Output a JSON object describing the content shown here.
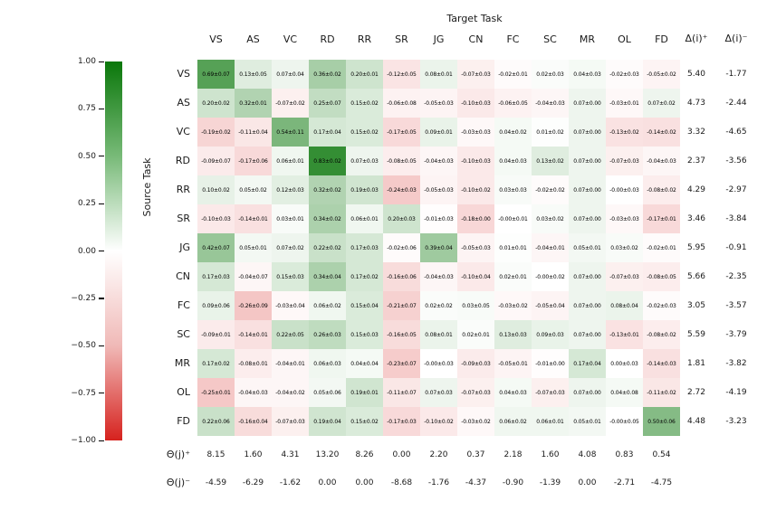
{
  "chart_data": {
    "type": "heatmap",
    "title": "Target Task",
    "xlabel": "Target Task",
    "ylabel": "Source Task",
    "columns": [
      "VS",
      "AS",
      "VC",
      "RD",
      "RR",
      "SR",
      "JG",
      "CN",
      "FC",
      "SC",
      "MR",
      "OL",
      "FD"
    ],
    "rows": [
      "VS",
      "AS",
      "VC",
      "RD",
      "RR",
      "SR",
      "JG",
      "CN",
      "FC",
      "SC",
      "MR",
      "OL",
      "FD"
    ],
    "cells": [
      [
        "0.69±0.07",
        "0.13±0.05",
        "0.07±0.04",
        "0.36±0.02",
        "0.20±0.01",
        "-0.12±0.05",
        "0.08±0.01",
        "-0.07±0.03",
        "-0.02±0.01",
        "0.02±0.03",
        "0.04±0.03",
        "-0.02±0.03",
        "-0.05±0.02"
      ],
      [
        "0.20±0.02",
        "0.32±0.01",
        "-0.07±0.02",
        "0.25±0.07",
        "0.15±0.02",
        "-0.06±0.08",
        "-0.05±0.03",
        "-0.10±0.03",
        "-0.06±0.05",
        "-0.04±0.03",
        "0.07±0.00",
        "-0.03±0.01",
        "0.07±0.02"
      ],
      [
        "-0.19±0.02",
        "-0.11±0.04",
        "0.54±0.11",
        "0.17±0.04",
        "0.15±0.02",
        "-0.17±0.05",
        "0.09±0.01",
        "-0.03±0.03",
        "0.04±0.02",
        "0.01±0.02",
        "0.07±0.00",
        "-0.13±0.02",
        "-0.14±0.02"
      ],
      [
        "-0.09±0.07",
        "-0.17±0.06",
        "0.06±0.01",
        "0.83±0.02",
        "0.07±0.03",
        "-0.08±0.05",
        "-0.04±0.03",
        "-0.10±0.03",
        "0.04±0.03",
        "0.13±0.02",
        "0.07±0.00",
        "-0.07±0.03",
        "-0.04±0.03"
      ],
      [
        "0.10±0.02",
        "0.05±0.02",
        "0.12±0.03",
        "0.32±0.02",
        "0.19±0.03",
        "-0.24±0.03",
        "-0.05±0.03",
        "-0.10±0.02",
        "0.03±0.03",
        "-0.02±0.02",
        "0.07±0.00",
        "-0.00±0.03",
        "-0.08±0.02"
      ],
      [
        "-0.10±0.03",
        "-0.14±0.01",
        "0.03±0.01",
        "0.34±0.02",
        "0.06±0.01",
        "0.20±0.03",
        "-0.01±0.03",
        "-0.18±0.00",
        "-0.00±0.01",
        "0.03±0.02",
        "0.07±0.00",
        "-0.03±0.03",
        "-0.17±0.01"
      ],
      [
        "0.42±0.07",
        "0.05±0.01",
        "0.07±0.02",
        "0.22±0.02",
        "0.17±0.03",
        "-0.02±0.06",
        "0.39±0.04",
        "-0.05±0.03",
        "0.01±0.01",
        "-0.04±0.01",
        "0.05±0.01",
        "0.03±0.02",
        "-0.02±0.01"
      ],
      [
        "0.17±0.03",
        "-0.04±0.07",
        "0.15±0.03",
        "0.34±0.04",
        "0.17±0.02",
        "-0.16±0.06",
        "-0.04±0.03",
        "-0.10±0.04",
        "0.02±0.01",
        "-0.00±0.02",
        "0.07±0.00",
        "-0.07±0.03",
        "-0.08±0.05"
      ],
      [
        "0.09±0.06",
        "-0.26±0.09",
        "-0.03±0.04",
        "0.06±0.02",
        "0.15±0.04",
        "-0.21±0.07",
        "0.02±0.02",
        "0.03±0.05",
        "-0.03±0.02",
        "-0.05±0.04",
        "0.07±0.00",
        "0.08±0.04",
        "-0.02±0.03"
      ],
      [
        "-0.09±0.01",
        "-0.14±0.01",
        "0.22±0.05",
        "0.26±0.03",
        "0.15±0.03",
        "-0.16±0.05",
        "0.08±0.01",
        "0.02±0.01",
        "0.13±0.03",
        "0.09±0.03",
        "0.07±0.00",
        "-0.13±0.01",
        "-0.08±0.02"
      ],
      [
        "0.17±0.02",
        "-0.08±0.01",
        "-0.04±0.01",
        "0.06±0.03",
        "0.04±0.04",
        "-0.23±0.07",
        "-0.00±0.03",
        "-0.09±0.03",
        "-0.05±0.01",
        "-0.01±0.00",
        "0.17±0.04",
        "0.00±0.03",
        "-0.14±0.03"
      ],
      [
        "-0.25±0.01",
        "-0.04±0.03",
        "-0.04±0.02",
        "0.05±0.06",
        "0.19±0.01",
        "-0.11±0.07",
        "0.07±0.03",
        "-0.07±0.03",
        "0.04±0.03",
        "-0.07±0.03",
        "0.07±0.00",
        "0.04±0.08",
        "-0.11±0.02"
      ],
      [
        "0.22±0.06",
        "-0.16±0.04",
        "-0.07±0.03",
        "0.19±0.04",
        "0.15±0.02",
        "-0.17±0.03",
        "-0.10±0.02",
        "-0.03±0.02",
        "0.06±0.02",
        "0.06±0.01",
        "0.05±0.01",
        "-0.00±0.05",
        "0.50±0.06"
      ]
    ],
    "delta_plus_label": "Δ(i)⁺",
    "delta_minus_label": "Δ(i)⁻",
    "delta_plus": [
      "5.40",
      "4.73",
      "3.32",
      "2.37",
      "4.29",
      "3.46",
      "5.95",
      "5.66",
      "3.05",
      "5.59",
      "1.81",
      "2.72",
      "4.48"
    ],
    "delta_minus": [
      "-1.77",
      "-2.44",
      "-4.65",
      "-3.56",
      "-2.97",
      "-3.84",
      "-0.91",
      "-2.35",
      "-3.57",
      "-3.79",
      "-3.82",
      "-4.19",
      "-3.23"
    ],
    "theta_plus_label": "Θ(j)⁺",
    "theta_minus_label": "Θ(j)⁻",
    "theta_plus": [
      "8.15",
      "1.60",
      "4.31",
      "13.20",
      "8.26",
      "0.00",
      "2.20",
      "0.37",
      "2.18",
      "1.60",
      "4.08",
      "0.83",
      "0.54"
    ],
    "theta_minus": [
      "-4.59",
      "-6.29",
      "-1.62",
      "0.00",
      "0.00",
      "-8.68",
      "-1.76",
      "-4.37",
      "-0.90",
      "-1.39",
      "0.00",
      "-2.71",
      "-4.75"
    ],
    "colorbar": {
      "tick_labels": [
        "1.00",
        "0.75",
        "0.50",
        "0.25",
        "0.00",
        "−0.25",
        "−0.50",
        "−0.75",
        "−1.00"
      ],
      "vmax": 1.0,
      "vmin": -1.0,
      "color_positive": "#0a770a",
      "color_zero": "#ffffff",
      "color_negative": "#d6221e",
      "position": "left"
    },
    "grid": false,
    "annotation_format": "value±std"
  }
}
